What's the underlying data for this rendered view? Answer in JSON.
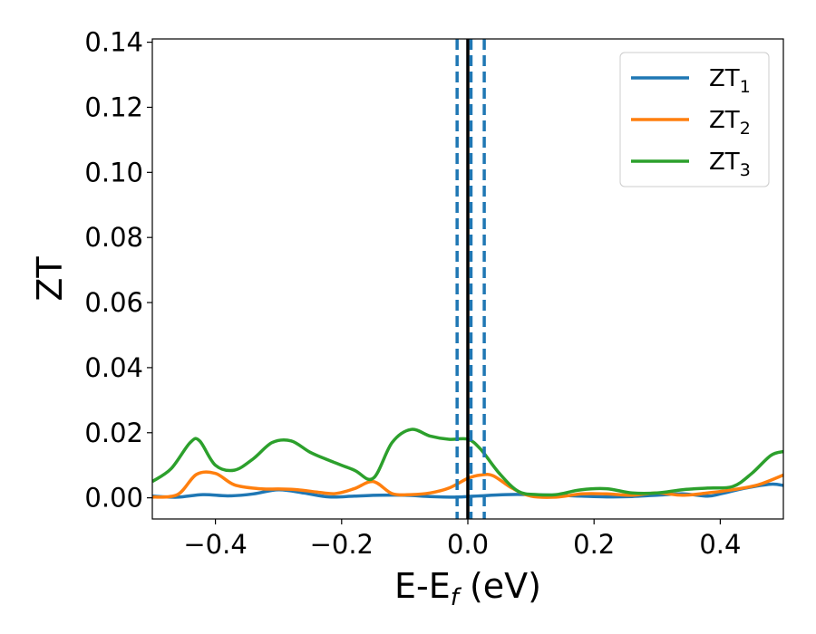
{
  "chart_data": {
    "type": "line",
    "title": "",
    "xlabel": {
      "main": "E-E",
      "sub": "f",
      "suffix": " (eV)"
    },
    "ylabel": "ZT",
    "xlim": [
      -0.5,
      0.5
    ],
    "ylim": [
      -0.0065,
      0.141
    ],
    "x_ticks": [
      -0.4,
      -0.2,
      0.0,
      0.2,
      0.4
    ],
    "x_tick_labels": [
      "−0.4",
      "−0.2",
      "0.0",
      "0.2",
      "0.4"
    ],
    "y_ticks": [
      0.0,
      0.02,
      0.04,
      0.06,
      0.08,
      0.1,
      0.12,
      0.14
    ],
    "y_tick_labels": [
      "0.00",
      "0.02",
      "0.04",
      "0.06",
      "0.08",
      "0.10",
      "0.12",
      "0.14"
    ],
    "grid": false,
    "legend_position": "top-right",
    "vertical_lines": [
      {
        "x": 0.0,
        "color": "#000000",
        "style": "solid"
      },
      {
        "x": -0.017,
        "color": "#1f77b4",
        "style": "dashed"
      },
      {
        "x": 0.005,
        "color": "#1f77b4",
        "style": "dashed"
      },
      {
        "x": 0.026,
        "color": "#1f77b4",
        "style": "dashed"
      }
    ],
    "series": [
      {
        "name": "ZT",
        "sub": "1",
        "color": "#1f77b4",
        "x": [
          -0.5,
          -0.46,
          -0.42,
          -0.38,
          -0.34,
          -0.3,
          -0.26,
          -0.22,
          -0.18,
          -0.14,
          -0.1,
          -0.06,
          -0.02,
          0.0,
          0.02,
          0.06,
          0.1,
          0.14,
          0.18,
          0.22,
          0.26,
          0.3,
          0.34,
          0.38,
          0.4,
          0.44,
          0.48,
          0.5
        ],
        "y": [
          0.0005,
          0.0002,
          0.001,
          0.0006,
          0.0012,
          0.0025,
          0.0015,
          0.0003,
          0.0005,
          0.0008,
          0.0008,
          0.0004,
          0.0002,
          0.0004,
          0.0006,
          0.001,
          0.001,
          0.0008,
          0.0005,
          0.0003,
          0.0004,
          0.0008,
          0.0012,
          0.0005,
          0.0012,
          0.003,
          0.0042,
          0.0038
        ]
      },
      {
        "name": "ZT",
        "sub": "2",
        "color": "#ff7f0e",
        "x": [
          -0.5,
          -0.46,
          -0.43,
          -0.4,
          -0.37,
          -0.33,
          -0.3,
          -0.27,
          -0.24,
          -0.21,
          -0.18,
          -0.15,
          -0.12,
          -0.09,
          -0.06,
          -0.03,
          0.0,
          0.02,
          0.04,
          0.07,
          0.1,
          0.14,
          0.18,
          0.22,
          0.26,
          0.3,
          0.34,
          0.38,
          0.42,
          0.46,
          0.5
        ],
        "y": [
          0.0002,
          0.001,
          0.0072,
          0.0075,
          0.004,
          0.0028,
          0.0027,
          0.0025,
          0.0018,
          0.0013,
          0.0028,
          0.005,
          0.0013,
          0.001,
          0.0015,
          0.003,
          0.006,
          0.007,
          0.0068,
          0.003,
          0.0005,
          0.0002,
          0.0012,
          0.0012,
          0.0008,
          0.0015,
          0.0008,
          0.0015,
          0.0025,
          0.004,
          0.007
        ]
      },
      {
        "name": "ZT",
        "sub": "3",
        "color": "#2ca02c",
        "x": [
          -0.5,
          -0.47,
          -0.44,
          -0.425,
          -0.4,
          -0.37,
          -0.34,
          -0.31,
          -0.28,
          -0.25,
          -0.22,
          -0.18,
          -0.15,
          -0.12,
          -0.09,
          -0.06,
          -0.03,
          0.0,
          0.02,
          0.05,
          0.08,
          0.11,
          0.14,
          0.18,
          0.22,
          0.26,
          0.3,
          0.34,
          0.38,
          0.42,
          0.45,
          0.48,
          0.5
        ],
        "y": [
          0.005,
          0.009,
          0.017,
          0.0175,
          0.01,
          0.0085,
          0.012,
          0.017,
          0.0175,
          0.014,
          0.0115,
          0.0085,
          0.006,
          0.017,
          0.021,
          0.019,
          0.018,
          0.018,
          0.015,
          0.0075,
          0.002,
          0.001,
          0.001,
          0.0025,
          0.0028,
          0.0015,
          0.0015,
          0.0025,
          0.003,
          0.0035,
          0.0075,
          0.013,
          0.0142
        ]
      }
    ]
  }
}
